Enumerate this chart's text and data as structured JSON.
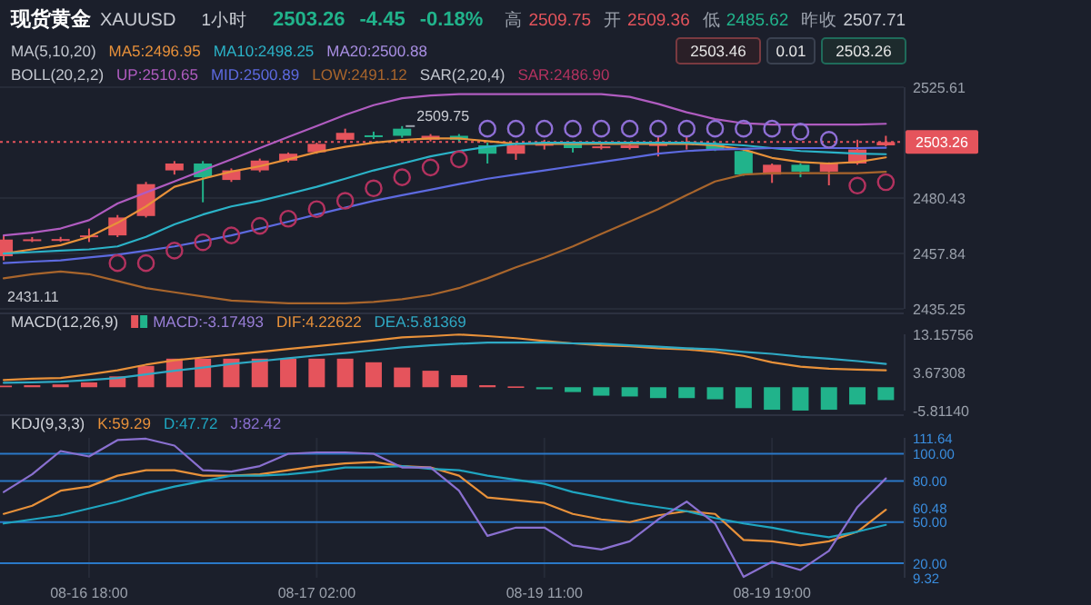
{
  "chart_data": [
    {
      "type": "candlestick",
      "title": "现货黄金",
      "subtitle": "XAUUSD",
      "categories": [
        null,
        null,
        null,
        null,
        null,
        null,
        null,
        null,
        null,
        null,
        null,
        null,
        null,
        null,
        null,
        null,
        null,
        null,
        null,
        null,
        null,
        null,
        null,
        null,
        null,
        null,
        null,
        null,
        null,
        null,
        null,
        null
      ],
      "ohlc": [
        [
          2456.7,
          2465,
          2455,
          2463.5
        ],
        [
          2463.5,
          2464.5,
          2462.5,
          2463.6
        ],
        [
          2463.6,
          2464.6,
          2462.6,
          2463.7
        ],
        [
          2464.8,
          2468,
          2462.5,
          2465.2
        ],
        [
          2465.2,
          2473.5,
          2464.5,
          2472.5
        ],
        [
          2473.1,
          2487,
          2472.5,
          2486.1
        ],
        [
          2491.7,
          2495.5,
          2490,
          2494.5
        ],
        [
          2494.5,
          2495.5,
          2478.7,
          2488.9
        ],
        [
          2487.8,
          2492.5,
          2487,
          2491.7
        ],
        [
          2491.7,
          2496.5,
          2491,
          2495.7
        ],
        [
          2495.7,
          2499,
          2495,
          2498.5
        ],
        [
          2499.1,
          2503,
          2498.5,
          2502.5
        ],
        [
          2504.2,
          2508.7,
          2503.5,
          2507
        ],
        [
          2506,
          2507.5,
          2504.5,
          2505.8
        ],
        [
          2508.7,
          2509.75,
          2505,
          2505.8
        ],
        [
          2504.2,
          2506.5,
          2503.5,
          2505.8
        ],
        [
          2505.8,
          2506.5,
          2503.5,
          2504.2
        ],
        [
          2501.9,
          2503,
          2494.5,
          2498.5
        ],
        [
          2498.5,
          2502.5,
          2496,
          2501.9
        ],
        [
          2502.2,
          2504.2,
          2500.2,
          2502.5
        ],
        [
          2502.5,
          2503.5,
          2499,
          2500.8
        ],
        [
          2500.8,
          2502.5,
          2500.2,
          2501.5
        ],
        [
          2500.8,
          2502.2,
          2500.2,
          2501.9
        ],
        [
          2501.9,
          2505.8,
          2497.4,
          2502.4
        ],
        [
          2502.4,
          2505.8,
          2500.2,
          2503
        ],
        [
          2502.4,
          2503.5,
          2499.6,
          2500.2
        ],
        [
          2499.6,
          2500.2,
          2489.5,
          2490
        ],
        [
          2490,
          2494.5,
          2486.6,
          2494
        ],
        [
          2494,
          2494.5,
          2488.9,
          2491.2
        ],
        [
          2491.2,
          2495,
          2485.62,
          2494.5
        ],
        [
          2494.5,
          2504.2,
          2494,
          2500.2
        ],
        [
          2501.9,
          2505.8,
          2501.5,
          2503.26
        ]
      ],
      "colors": [
        "#e5545c",
        "#e5545c",
        "#e5545c",
        "#e5545c",
        "#e5545c",
        "#e5545c",
        "#e5545c",
        "#21b38b",
        "#e5545c",
        "#e5545c",
        "#e5545c",
        "#e5545c",
        "#e5545c",
        "#21b38b",
        "#21b38b",
        "#e5545c",
        "#21b38b",
        "#21b38b",
        "#e5545c",
        "#e5545c",
        "#21b38b",
        "#e5545c",
        "#e5545c",
        "#e5545c",
        "#e5545c",
        "#21b38b",
        "#21b38b",
        "#e5545c",
        "#21b38b",
        "#e5545c",
        "#e5545c",
        "#e5545c"
      ],
      "series": [
        {
          "name": "MA5:2496.95",
          "type": "line",
          "color": "#e8913a",
          "values": [
            2457.8,
            2459.5,
            2461.2,
            2464.6,
            2470.3,
            2477.0,
            2485.0,
            2488.3,
            2491.2,
            2493.4,
            2496.2,
            2499.1,
            2501.3,
            2503.0,
            2504.1,
            2504.7,
            2504.7,
            2503.6,
            2502.5,
            2502.5,
            2502.5,
            2502.5,
            2502.5,
            2502.5,
            2502.5,
            2501.9,
            2500.2,
            2496.8,
            2495.1,
            2494.5,
            2495.1,
            2497.0
          ]
        },
        {
          "name": "MA10:2498.25",
          "type": "line",
          "color": "#2bb3c8",
          "values": [
            2457.8,
            2458.4,
            2459.0,
            2459.5,
            2460.7,
            2464.6,
            2469.7,
            2473.7,
            2477.0,
            2479.3,
            2482.1,
            2485.0,
            2488.3,
            2491.7,
            2494.5,
            2497.4,
            2499.6,
            2501.3,
            2502.5,
            2503.0,
            2503.0,
            2503.0,
            2503.0,
            2503.0,
            2503.0,
            2502.5,
            2501.9,
            2500.8,
            2499.6,
            2499.1,
            2498.5,
            2498.3
          ]
        },
        {
          "name": "UP:2510.65",
          "type": "line",
          "color": "#b05cc0",
          "values": [
            2465.2,
            2466.3,
            2468.0,
            2471.4,
            2478.2,
            2482.7,
            2487.2,
            2491.7,
            2496.2,
            2500.8,
            2505.3,
            2509.8,
            2514.3,
            2518.3,
            2521.1,
            2522.2,
            2522.8,
            2522.8,
            2522.8,
            2522.8,
            2522.8,
            2522.8,
            2521.7,
            2518.8,
            2515.4,
            2512.6,
            2510.9,
            2510.4,
            2510.4,
            2510.4,
            2510.4,
            2510.7
          ]
        },
        {
          "name": "MID:2500.89",
          "type": "line",
          "color": "#5d6ae0",
          "values": [
            2453.9,
            2454.5,
            2455.0,
            2456.2,
            2457.3,
            2459.0,
            2460.7,
            2462.9,
            2465.2,
            2468.0,
            2470.8,
            2473.7,
            2476.5,
            2479.3,
            2481.6,
            2483.8,
            2486.1,
            2488.3,
            2490.0,
            2491.7,
            2493.4,
            2495.1,
            2496.8,
            2498.5,
            2499.6,
            2500.2,
            2500.5,
            2500.8,
            2500.8,
            2500.8,
            2500.8,
            2500.9
          ]
        },
        {
          "name": "LOW:2491.12",
          "type": "line",
          "color": "#a8652c",
          "values": [
            2447.7,
            2449.4,
            2450.5,
            2449.4,
            2446.6,
            2443.7,
            2442.0,
            2440.3,
            2438.6,
            2438.1,
            2437.5,
            2437.5,
            2437.5,
            2438.1,
            2439.2,
            2440.9,
            2443.7,
            2447.7,
            2452.2,
            2456.2,
            2460.7,
            2465.8,
            2470.8,
            2475.9,
            2481.6,
            2487.2,
            2490.0,
            2490.6,
            2490.6,
            2490.6,
            2490.6,
            2491.1
          ]
        },
        {
          "name": "SAR:2486.90",
          "type": "scatter",
          "marker": "circle",
          "color": "#b3325f",
          "colors": [
            null,
            null,
            null,
            null,
            "#b3325f",
            "#b3325f",
            "#b3325f",
            "#b3325f",
            "#b3325f",
            "#b3325f",
            "#b3325f",
            "#b3325f",
            "#b3325f",
            "#b3325f",
            "#b3325f",
            "#b3325f",
            "#b3325f",
            "#8f6fd6",
            "#8f6fd6",
            "#8f6fd6",
            "#8f6fd6",
            "#8f6fd6",
            "#8f6fd6",
            "#8f6fd6",
            "#8f6fd6",
            "#8f6fd6",
            "#8f6fd6",
            "#8f6fd6",
            "#8f6fd6",
            "#8f6fd6",
            "#b3325f",
            "#b3325f"
          ],
          "values": [
            null,
            null,
            null,
            null,
            2453.9,
            2453.9,
            2459.0,
            2462.4,
            2465.2,
            2469.1,
            2472.0,
            2475.9,
            2479.3,
            2484.4,
            2488.9,
            2492.9,
            2496.2,
            2508.7,
            2508.7,
            2508.7,
            2508.7,
            2508.7,
            2508.7,
            2508.7,
            2508.7,
            2508.7,
            2508.7,
            2508.7,
            2507.5,
            2504.2,
            2485.5,
            2486.9
          ]
        }
      ],
      "ylim": [
        2435.25,
        2525.61
      ],
      "yticks": [
        2525.61,
        2480.43,
        2457.84,
        2435.25
      ],
      "ref_lines": [
        {
          "axis": "y",
          "value": 2503.26,
          "label": "2503.26",
          "color": "#e5545c",
          "line_style": "dotted"
        }
      ],
      "annotations": [
        "1小时",
        "2503.26",
        "-4.45",
        "-0.18%",
        "高",
        "2509.75",
        "开",
        "2509.36",
        "低",
        "2485.62",
        "昨收",
        "2507.71",
        "2503.46",
        "0.01",
        "2503.26",
        "MA(5,10,20)",
        "MA20:2500.88",
        "BOLL(20,2,2)",
        "SAR(2,20,4)",
        "2509.75",
        "2431.11"
      ],
      "grid": "y",
      "legend": "top",
      "tick_labels": "y"
    },
    {
      "type": "bar",
      "title": "MACD(12,26,9)",
      "categories": [
        null,
        null,
        null,
        null,
        null,
        null,
        null,
        null,
        null,
        null,
        null,
        null,
        null,
        null,
        null,
        null,
        null,
        null,
        null,
        null,
        null,
        null,
        null,
        null,
        null,
        null,
        null,
        null,
        null,
        null,
        null,
        null
      ],
      "series": [
        {
          "name": "MACD:-3.17493",
          "type": "bar",
          "colors": [
            "#e5545c",
            "#e5545c",
            "#e5545c",
            "#e5545c",
            "#e5545c",
            "#e5545c",
            "#e5545c",
            "#e5545c",
            "#e5545c",
            "#e5545c",
            "#e5545c",
            "#e5545c",
            "#e5545c",
            "#e5545c",
            "#e5545c",
            "#e5545c",
            "#e5545c",
            "#e5545c",
            "#e5545c",
            "#21b38b",
            "#21b38b",
            "#21b38b",
            "#21b38b",
            "#21b38b",
            "#21b38b",
            "#21b38b",
            "#21b38b",
            "#21b38b",
            "#21b38b",
            "#21b38b",
            "#21b38b",
            "#21b38b"
          ],
          "values": [
            0.4,
            0.5,
            0.7,
            1.2,
            2.7,
            5.3,
            7.1,
            7.1,
            7.1,
            7.1,
            7.1,
            7.1,
            7.1,
            6.2,
            4.9,
            4.1,
            3.0,
            0.5,
            0.2,
            -0.5,
            -1.2,
            -2.1,
            -2.3,
            -2.7,
            -2.7,
            -3.0,
            -5.2,
            -5.6,
            -5.8,
            -5.6,
            -4.3,
            -3.2
          ]
        },
        {
          "name": "DIF:4.22622",
          "type": "line",
          "color": "#e8913a",
          "values": [
            1.8,
            2.1,
            2.3,
            3.2,
            4.2,
            5.6,
            6.7,
            7.4,
            8.1,
            8.8,
            9.5,
            10.2,
            10.9,
            11.6,
            12.4,
            12.7,
            13.1,
            12.7,
            12.2,
            11.5,
            10.9,
            10.4,
            10.2,
            9.7,
            9.4,
            8.8,
            7.8,
            6.2,
            5.1,
            4.6,
            4.4,
            4.2
          ]
        },
        {
          "name": "DEA:5.81369",
          "type": "line",
          "color": "#2fa9c4",
          "values": [
            1.1,
            1.2,
            1.4,
            1.8,
            2.3,
            3.2,
            4.1,
            4.9,
            5.8,
            6.5,
            7.2,
            7.9,
            8.5,
            9.2,
            9.9,
            10.4,
            10.8,
            11.1,
            11.1,
            11.1,
            10.9,
            10.8,
            10.4,
            10.1,
            9.7,
            9.4,
            8.8,
            8.3,
            7.6,
            7.1,
            6.5,
            5.8
          ]
        }
      ],
      "ylim": [
        -5.8114,
        13.15756
      ],
      "yticks": [
        13.15756,
        3.67308,
        {
          "value": -5.8114,
          "label": "-5.81140"
        }
      ],
      "legend": "top left",
      "tick_labels": "y"
    },
    {
      "type": "line",
      "title": "KDJ(9,3,3)",
      "categories": [
        null,
        null,
        null,
        "08-16 18:00",
        null,
        null,
        null,
        null,
        null,
        null,
        null,
        "08-17 02:00",
        null,
        null,
        null,
        null,
        null,
        null,
        null,
        "08-19 11:00",
        null,
        null,
        null,
        null,
        null,
        null,
        null,
        "08-19 19:00",
        null,
        null,
        null,
        null
      ],
      "series": [
        {
          "name": "K:59.29",
          "color": "#e8913a",
          "values": [
            56,
            62,
            73,
            76,
            84,
            88,
            88,
            84,
            84,
            85,
            88,
            91,
            93,
            94,
            91,
            90,
            84,
            68,
            66,
            64,
            56,
            52,
            50,
            55,
            58,
            56,
            37,
            36,
            33,
            36,
            43,
            59
          ]
        },
        {
          "name": "D:47.72",
          "color": "#1fa5c0",
          "values": [
            49,
            52,
            55,
            60,
            65,
            71,
            76,
            80,
            84,
            84,
            85,
            87,
            90,
            90,
            91,
            89,
            88,
            84,
            81,
            78,
            72,
            68,
            64,
            61,
            58,
            53,
            49,
            46,
            42,
            39,
            43,
            48
          ]
        },
        {
          "name": "J:82.42",
          "color": "#8a70d0",
          "values": [
            72,
            85,
            102,
            98,
            110,
            111,
            106,
            88,
            87,
            91,
            100,
            101,
            101,
            100,
            90,
            90,
            73,
            40,
            46,
            46,
            33,
            30,
            36,
            52,
            65,
            49,
            10,
            21,
            15,
            29,
            61,
            82
          ]
        }
      ],
      "ylim": [
        9.32,
        111.64
      ],
      "yticks": [
        111.64,
        {
          "value": 100,
          "label": "100.00"
        },
        {
          "value": 80,
          "label": "80.00"
        },
        60.48,
        {
          "value": 50,
          "label": "50.00"
        },
        {
          "value": 20,
          "label": "20.00"
        },
        9.32
      ],
      "ref_lines": [
        {
          "axis": "y",
          "value": 100,
          "color": "#2a78c8"
        },
        {
          "axis": "y",
          "value": 80,
          "color": "#2a78c8"
        },
        {
          "axis": "y",
          "value": 50,
          "color": "#2a78c8"
        },
        {
          "axis": "y",
          "value": 20,
          "color": "#2a78c8"
        }
      ],
      "grid": "x",
      "legend": "top left"
    }
  ]
}
